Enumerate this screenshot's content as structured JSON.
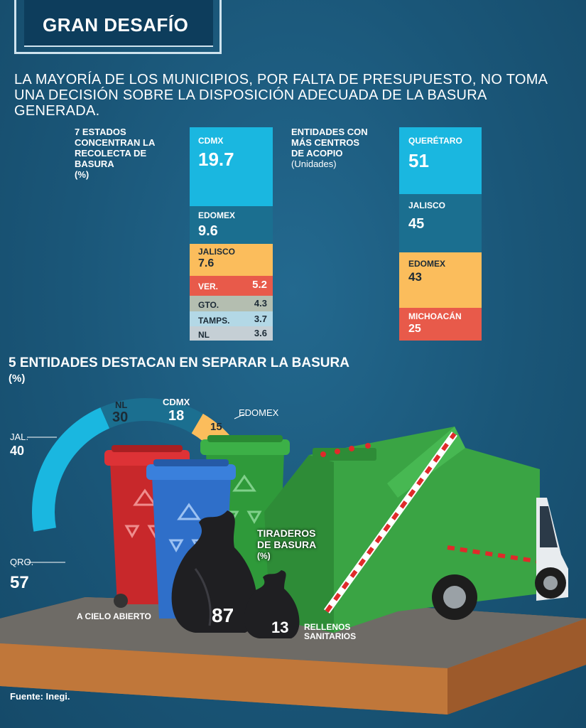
{
  "banner": {
    "title": "GRAN DESAFÍO"
  },
  "lead": {
    "line1": "LA MAYORÍA DE LOS MUNICIPIOS, POR FALTA DE PRESUPUESTO, NO TOMA",
    "line2": "UNA DECISIÓN SOBRE LA DISPOSICIÓN ADECUADA DE LA BASURA GENERADA."
  },
  "colors": {
    "background": "#1c5b80",
    "cyan": "#1ab7e0",
    "teal": "#1b6f90",
    "yellow": "#fbbd5c",
    "red": "#e85a4a",
    "gray_green": "#b4beb0",
    "light_blue": "#b3d8e6",
    "light_gray": "#c5cfd5",
    "truck_green": "#3aa444"
  },
  "chart_data": [
    {
      "type": "bar",
      "title_lines": [
        "7 ESTADOS",
        "CONCENTRAN LA",
        "RECOLECTA DE",
        "BASURA",
        "(%)"
      ],
      "categories": [
        "CDMX",
        "EDOMEX",
        "JALISCO",
        "VER.",
        "GTO.",
        "TAMPS.",
        "NL"
      ],
      "values": [
        19.7,
        9.6,
        7.6,
        5.2,
        4.3,
        3.7,
        3.6
      ],
      "value_labels": [
        "19.7",
        "9.6",
        "7.6",
        "5.2",
        "4.3",
        "3.7",
        "3.6"
      ],
      "orientation": "stacked-column"
    },
    {
      "type": "bar",
      "title_lines": [
        "ENTIDADES CON",
        "MÁS CENTROS",
        "DE ACOPIO",
        "(Unidades)"
      ],
      "categories": [
        "QUERÉTARO",
        "JALISCO",
        "EDOMEX",
        "MICHOACÁN"
      ],
      "values": [
        51,
        45,
        43,
        25
      ],
      "value_labels": [
        "51",
        "45",
        "43",
        "25"
      ],
      "orientation": "stacked-column"
    },
    {
      "type": "pie",
      "title_lines": [
        "5 ENTIDADES DESTACAN EN SEPARAR LA BASURA",
        "(%)"
      ],
      "categories": [
        "QRO.",
        "JAL.",
        "NL",
        "CDMX",
        "EDOMEX"
      ],
      "values": [
        57,
        40,
        30,
        18,
        15
      ],
      "value_labels": [
        "57",
        "40",
        "30",
        "18",
        "15"
      ],
      "style": "semi-donut"
    },
    {
      "type": "bar",
      "title_lines": [
        "TIRADEROS",
        "DE BASURA",
        "(%)"
      ],
      "categories": [
        "A CIELO ABIERTO",
        "RELLENOS SANITARIOS"
      ],
      "category_lines": [
        [
          "A CIELO ABIERTO"
        ],
        [
          "RELLENOS",
          "SANITARIOS"
        ]
      ],
      "values": [
        87,
        13
      ],
      "value_labels": [
        "87",
        "13"
      ],
      "style": "bag-pictogram"
    }
  ],
  "source": "Fuente: Inegi."
}
